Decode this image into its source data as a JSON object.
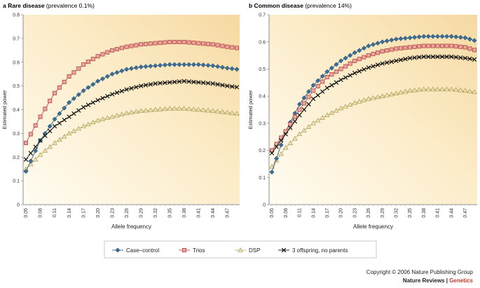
{
  "chart_data": [
    {
      "type": "line",
      "panel_letter": "a",
      "title": "Rare disease",
      "subtitle": "(prevalence 0.1%)",
      "xlabel": "Allele frequency",
      "ylabel": "Estimated power",
      "ylim": [
        0,
        0.8
      ],
      "yticks": [
        "0",
        "0.1",
        "0.2",
        "0.3",
        "0.4",
        "0.5",
        "0.6",
        "0.7",
        "0.8"
      ],
      "xtick_labels": [
        "0.05",
        "0.08",
        "0.11",
        "0.14",
        "0.17",
        "0.20",
        "0.23",
        "0.26",
        "0.29",
        "0.32",
        "0.35",
        "0.38",
        "0.41",
        "0.44",
        "0.47"
      ],
      "x_start": 0.05,
      "x_step": 0.01,
      "n_points": 45,
      "series": [
        {
          "name": "Case–control",
          "anchors": [
            [
              0.05,
              0.14
            ],
            [
              0.08,
              0.27
            ],
            [
              0.11,
              0.36
            ],
            [
              0.14,
              0.43
            ],
            [
              0.17,
              0.48
            ],
            [
              0.2,
              0.52
            ],
            [
              0.23,
              0.55
            ],
            [
              0.26,
              0.57
            ],
            [
              0.29,
              0.58
            ],
            [
              0.32,
              0.585
            ],
            [
              0.35,
              0.59
            ],
            [
              0.38,
              0.59
            ],
            [
              0.41,
              0.59
            ],
            [
              0.44,
              0.585
            ],
            [
              0.47,
              0.575
            ],
            [
              0.49,
              0.57
            ]
          ]
        },
        {
          "name": "Trios",
          "anchors": [
            [
              0.05,
              0.26
            ],
            [
              0.08,
              0.37
            ],
            [
              0.11,
              0.47
            ],
            [
              0.14,
              0.54
            ],
            [
              0.17,
              0.59
            ],
            [
              0.2,
              0.625
            ],
            [
              0.23,
              0.65
            ],
            [
              0.26,
              0.665
            ],
            [
              0.29,
              0.675
            ],
            [
              0.32,
              0.68
            ],
            [
              0.35,
              0.685
            ],
            [
              0.38,
              0.685
            ],
            [
              0.41,
              0.68
            ],
            [
              0.44,
              0.675
            ],
            [
              0.47,
              0.665
            ],
            [
              0.49,
              0.66
            ]
          ]
        },
        {
          "name": "DSP",
          "anchors": [
            [
              0.05,
              0.15
            ],
            [
              0.08,
              0.21
            ],
            [
              0.11,
              0.26
            ],
            [
              0.14,
              0.3
            ],
            [
              0.17,
              0.33
            ],
            [
              0.2,
              0.355
            ],
            [
              0.23,
              0.37
            ],
            [
              0.26,
              0.385
            ],
            [
              0.29,
              0.395
            ],
            [
              0.32,
              0.4
            ],
            [
              0.35,
              0.405
            ],
            [
              0.38,
              0.405
            ],
            [
              0.41,
              0.4
            ],
            [
              0.44,
              0.395
            ],
            [
              0.47,
              0.388
            ],
            [
              0.49,
              0.383
            ]
          ]
        },
        {
          "name": "3 offspring, no parents",
          "anchors": [
            [
              0.05,
              0.19
            ],
            [
              0.08,
              0.27
            ],
            [
              0.11,
              0.33
            ],
            [
              0.14,
              0.37
            ],
            [
              0.17,
              0.41
            ],
            [
              0.2,
              0.44
            ],
            [
              0.23,
              0.465
            ],
            [
              0.26,
              0.485
            ],
            [
              0.29,
              0.5
            ],
            [
              0.32,
              0.51
            ],
            [
              0.35,
              0.515
            ],
            [
              0.38,
              0.52
            ],
            [
              0.41,
              0.515
            ],
            [
              0.44,
              0.51
            ],
            [
              0.47,
              0.5
            ],
            [
              0.49,
              0.495
            ]
          ]
        }
      ]
    },
    {
      "type": "line",
      "panel_letter": "b",
      "title": "Common disease",
      "subtitle": "(prevalence 14%)",
      "xlabel": "Allele frequency",
      "ylabel": "Estimated power",
      "ylim": [
        0,
        0.7
      ],
      "yticks": [
        "0",
        "0.1",
        "0.2",
        "0.3",
        "0.4",
        "0.5",
        "0.6",
        "0.7"
      ],
      "xtick_labels": [
        "0.05",
        "0.08",
        "0.11",
        "0.14",
        "0.17",
        "0.20",
        "0.23",
        "0.26",
        "0.29",
        "0.32",
        "0.35",
        "0.38",
        "0.41",
        "0.44",
        "0.47"
      ],
      "x_start": 0.05,
      "x_step": 0.01,
      "n_points": 45,
      "series": [
        {
          "name": "Case–control",
          "anchors": [
            [
              0.05,
              0.12
            ],
            [
              0.08,
              0.27
            ],
            [
              0.11,
              0.37
            ],
            [
              0.14,
              0.44
            ],
            [
              0.17,
              0.49
            ],
            [
              0.2,
              0.53
            ],
            [
              0.23,
              0.56
            ],
            [
              0.26,
              0.585
            ],
            [
              0.29,
              0.6
            ],
            [
              0.32,
              0.61
            ],
            [
              0.35,
              0.615
            ],
            [
              0.38,
              0.62
            ],
            [
              0.41,
              0.62
            ],
            [
              0.44,
              0.62
            ],
            [
              0.47,
              0.615
            ],
            [
              0.49,
              0.605
            ]
          ]
        },
        {
          "name": "Trios",
          "anchors": [
            [
              0.05,
              0.2
            ],
            [
              0.08,
              0.27
            ],
            [
              0.11,
              0.35
            ],
            [
              0.14,
              0.42
            ],
            [
              0.17,
              0.47
            ],
            [
              0.2,
              0.5
            ],
            [
              0.23,
              0.53
            ],
            [
              0.26,
              0.55
            ],
            [
              0.29,
              0.565
            ],
            [
              0.32,
              0.575
            ],
            [
              0.35,
              0.58
            ],
            [
              0.38,
              0.585
            ],
            [
              0.41,
              0.585
            ],
            [
              0.44,
              0.585
            ],
            [
              0.47,
              0.58
            ],
            [
              0.49,
              0.57
            ]
          ]
        },
        {
          "name": "DSP",
          "anchors": [
            [
              0.05,
              0.14
            ],
            [
              0.08,
              0.21
            ],
            [
              0.11,
              0.26
            ],
            [
              0.14,
              0.3
            ],
            [
              0.17,
              0.33
            ],
            [
              0.2,
              0.355
            ],
            [
              0.23,
              0.375
            ],
            [
              0.26,
              0.39
            ],
            [
              0.29,
              0.4
            ],
            [
              0.32,
              0.41
            ],
            [
              0.35,
              0.42
            ],
            [
              0.38,
              0.425
            ],
            [
              0.41,
              0.425
            ],
            [
              0.44,
              0.425
            ],
            [
              0.47,
              0.42
            ],
            [
              0.49,
              0.415
            ]
          ]
        },
        {
          "name": "3 offspring, no parents",
          "anchors": [
            [
              0.05,
              0.19
            ],
            [
              0.08,
              0.26
            ],
            [
              0.11,
              0.33
            ],
            [
              0.14,
              0.39
            ],
            [
              0.17,
              0.43
            ],
            [
              0.2,
              0.46
            ],
            [
              0.23,
              0.485
            ],
            [
              0.26,
              0.505
            ],
            [
              0.29,
              0.52
            ],
            [
              0.32,
              0.53
            ],
            [
              0.35,
              0.54
            ],
            [
              0.38,
              0.545
            ],
            [
              0.41,
              0.545
            ],
            [
              0.44,
              0.545
            ],
            [
              0.47,
              0.54
            ],
            [
              0.49,
              0.535
            ]
          ]
        }
      ]
    }
  ],
  "legend": [
    {
      "label": "Case–control",
      "marker": "diamond",
      "color": "#3a6e96"
    },
    {
      "label": "Trios",
      "marker": "square",
      "color": "#c9504f"
    },
    {
      "label": "DSP",
      "marker": "triangle",
      "color": "#d8c788"
    },
    {
      "label": "3 offspring, no parents",
      "marker": "x",
      "color": "#111111"
    }
  ],
  "colors": {
    "bg_light": "#fffbee",
    "bg_warm": "#f7dfae",
    "grid": "#e0c9a0",
    "axis": "#7a7a7a"
  },
  "credit": {
    "line1": "Copyright © 2006 Nature Publishing Group",
    "journal": "Nature Reviews",
    "separator": " | ",
    "section": "Genetics"
  }
}
